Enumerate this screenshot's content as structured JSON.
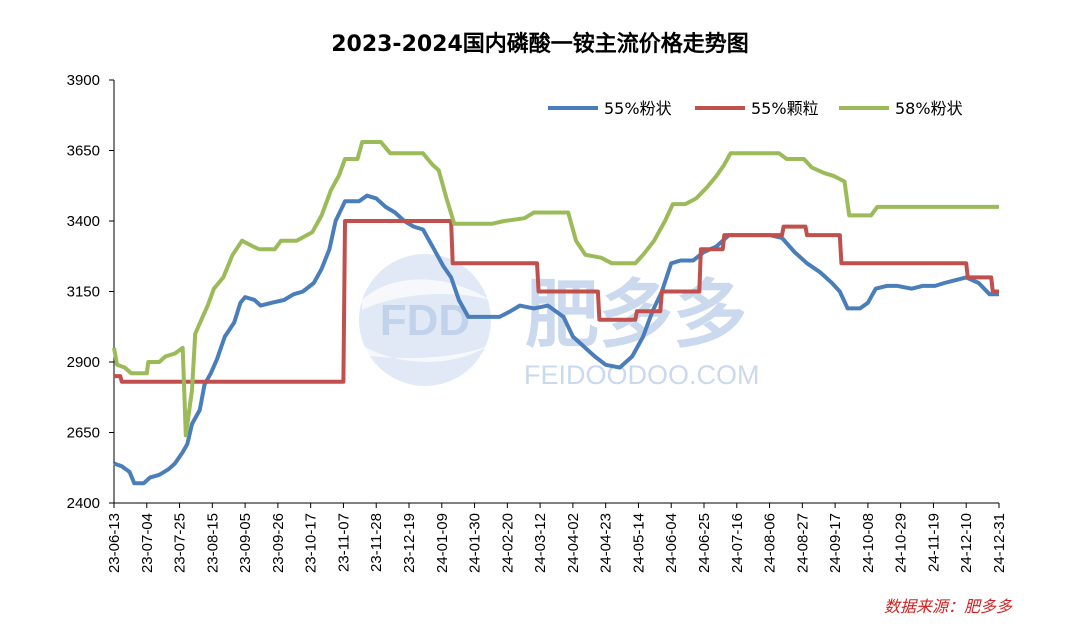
{
  "colors": {
    "series_blue": "#4a7ebb",
    "series_red": "#c0504d",
    "series_green": "#9bbb59",
    "source_red": "#d21f1f",
    "watermark": "#c8d8ee"
  },
  "watermark": {
    "logo": "FDD",
    "brand": "肥多多",
    "site": "FEIDOODOO.COM"
  },
  "source_note": "数据来源：肥多多",
  "chart_data": {
    "type": "line",
    "title": "2023-2024国内磷酸一铵主流价格走势图",
    "xlabel": "",
    "ylabel": "",
    "ylim": [
      2400,
      3900
    ],
    "yticks": [
      2400,
      2650,
      2900,
      3150,
      3400,
      3650,
      3900
    ],
    "xlim": [
      "2023-06-13",
      "2024-12-31"
    ],
    "xtick_labels": [
      "23-06-13",
      "23-07-04",
      "23-07-25",
      "23-08-15",
      "23-09-05",
      "23-09-26",
      "23-10-17",
      "23-11-07",
      "23-11-28",
      "23-12-19",
      "24-01-09",
      "24-01-30",
      "24-02-20",
      "24-03-12",
      "24-04-02",
      "24-04-23",
      "24-05-14",
      "24-06-04",
      "24-06-25",
      "24-07-16",
      "24-08-06",
      "24-08-27",
      "24-09-17",
      "24-10-08",
      "24-10-29",
      "24-11-19",
      "24-12-10",
      "24-12-31"
    ],
    "legend_position": "top-right",
    "grid": false,
    "series": [
      {
        "name": "55%粉状",
        "color": "#4a7ebb",
        "points": [
          [
            "2023-06-13",
            2540
          ],
          [
            "2023-06-18",
            2530
          ],
          [
            "2023-06-23",
            2510
          ],
          [
            "2023-06-26",
            2470
          ],
          [
            "2023-07-02",
            2470
          ],
          [
            "2023-07-06",
            2490
          ],
          [
            "2023-07-12",
            2500
          ],
          [
            "2023-07-18",
            2520
          ],
          [
            "2023-07-22",
            2540
          ],
          [
            "2023-07-27",
            2580
          ],
          [
            "2023-07-30",
            2610
          ],
          [
            "2023-08-02",
            2680
          ],
          [
            "2023-08-07",
            2730
          ],
          [
            "2023-08-10",
            2820
          ],
          [
            "2023-08-14",
            2860
          ],
          [
            "2023-08-18",
            2910
          ],
          [
            "2023-08-23",
            2990
          ],
          [
            "2023-08-29",
            3040
          ],
          [
            "2023-09-02",
            3110
          ],
          [
            "2023-09-05",
            3130
          ],
          [
            "2023-09-11",
            3120
          ],
          [
            "2023-09-15",
            3100
          ],
          [
            "2023-09-22",
            3110
          ],
          [
            "2023-09-30",
            3120
          ],
          [
            "2023-10-06",
            3140
          ],
          [
            "2023-10-12",
            3150
          ],
          [
            "2023-10-19",
            3180
          ],
          [
            "2023-10-24",
            3230
          ],
          [
            "2023-10-29",
            3300
          ],
          [
            "2023-11-02",
            3400
          ],
          [
            "2023-11-08",
            3470
          ],
          [
            "2023-11-17",
            3470
          ],
          [
            "2023-11-22",
            3490
          ],
          [
            "2023-11-28",
            3480
          ],
          [
            "2023-12-04",
            3450
          ],
          [
            "2023-12-10",
            3430
          ],
          [
            "2023-12-16",
            3400
          ],
          [
            "2023-12-22",
            3380
          ],
          [
            "2023-12-28",
            3370
          ],
          [
            "2024-01-04",
            3300
          ],
          [
            "2024-01-10",
            3240
          ],
          [
            "2024-01-15",
            3200
          ],
          [
            "2024-01-20",
            3120
          ],
          [
            "2024-01-26",
            3060
          ],
          [
            "2024-02-05",
            3060
          ],
          [
            "2024-02-15",
            3060
          ],
          [
            "2024-02-22",
            3080
          ],
          [
            "2024-02-28",
            3100
          ],
          [
            "2024-03-08",
            3090
          ],
          [
            "2024-03-17",
            3100
          ],
          [
            "2024-03-27",
            3060
          ],
          [
            "2024-04-02",
            2990
          ],
          [
            "2024-04-08",
            2960
          ],
          [
            "2024-04-16",
            2920
          ],
          [
            "2024-04-23",
            2890
          ],
          [
            "2024-05-02",
            2880
          ],
          [
            "2024-05-10",
            2920
          ],
          [
            "2024-05-17",
            2990
          ],
          [
            "2024-05-23",
            3080
          ],
          [
            "2024-05-29",
            3150
          ],
          [
            "2024-06-04",
            3250
          ],
          [
            "2024-06-10",
            3260
          ],
          [
            "2024-06-18",
            3260
          ],
          [
            "2024-06-25",
            3290
          ],
          [
            "2024-07-03",
            3310
          ],
          [
            "2024-07-11",
            3350
          ],
          [
            "2024-07-22",
            3350
          ],
          [
            "2024-08-06",
            3350
          ],
          [
            "2024-08-14",
            3340
          ],
          [
            "2024-08-22",
            3290
          ],
          [
            "2024-08-30",
            3250
          ],
          [
            "2024-09-07",
            3220
          ],
          [
            "2024-09-15",
            3180
          ],
          [
            "2024-09-20",
            3150
          ],
          [
            "2024-09-25",
            3090
          ],
          [
            "2024-10-03",
            3090
          ],
          [
            "2024-10-08",
            3110
          ],
          [
            "2024-10-13",
            3160
          ],
          [
            "2024-10-20",
            3170
          ],
          [
            "2024-10-27",
            3170
          ],
          [
            "2024-11-05",
            3160
          ],
          [
            "2024-11-12",
            3170
          ],
          [
            "2024-11-20",
            3170
          ],
          [
            "2024-11-26",
            3180
          ],
          [
            "2024-12-03",
            3190
          ],
          [
            "2024-12-10",
            3200
          ],
          [
            "2024-12-18",
            3180
          ],
          [
            "2024-12-25",
            3140
          ],
          [
            "2024-12-31",
            3140
          ]
        ]
      },
      {
        "name": "55%颗粒",
        "color": "#c0504d",
        "points": [
          [
            "2023-06-13",
            2850
          ],
          [
            "2023-06-17",
            2850
          ],
          [
            "2023-06-18",
            2830
          ],
          [
            "2023-11-07",
            2830
          ],
          [
            "2023-11-08",
            3400
          ],
          [
            "2024-01-15",
            3400
          ],
          [
            "2024-01-16",
            3250
          ],
          [
            "2024-03-10",
            3250
          ],
          [
            "2024-03-11",
            3150
          ],
          [
            "2024-04-18",
            3150
          ],
          [
            "2024-04-19",
            3050
          ],
          [
            "2024-05-12",
            3050
          ],
          [
            "2024-05-13",
            3080
          ],
          [
            "2024-05-28",
            3080
          ],
          [
            "2024-05-29",
            3150
          ],
          [
            "2024-06-22",
            3150
          ],
          [
            "2024-06-23",
            3300
          ],
          [
            "2024-07-07",
            3300
          ],
          [
            "2024-07-08",
            3350
          ],
          [
            "2024-08-14",
            3350
          ],
          [
            "2024-08-15",
            3380
          ],
          [
            "2024-08-29",
            3380
          ],
          [
            "2024-08-30",
            3350
          ],
          [
            "2024-09-20",
            3350
          ],
          [
            "2024-09-21",
            3250
          ],
          [
            "2024-12-10",
            3250
          ],
          [
            "2024-12-11",
            3200
          ],
          [
            "2024-12-26",
            3200
          ],
          [
            "2024-12-27",
            3150
          ],
          [
            "2024-12-31",
            3150
          ]
        ]
      },
      {
        "name": "58%粉状",
        "color": "#9bbb59",
        "points": [
          [
            "2023-06-13",
            2950
          ],
          [
            "2023-06-15",
            2890
          ],
          [
            "2023-06-20",
            2880
          ],
          [
            "2023-06-24",
            2860
          ],
          [
            "2023-07-04",
            2860
          ],
          [
            "2023-07-05",
            2900
          ],
          [
            "2023-07-12",
            2900
          ],
          [
            "2023-07-16",
            2920
          ],
          [
            "2023-07-22",
            2930
          ],
          [
            "2023-07-27",
            2950
          ],
          [
            "2023-07-29",
            2640
          ],
          [
            "2023-08-02",
            2800
          ],
          [
            "2023-08-04",
            3000
          ],
          [
            "2023-08-08",
            3050
          ],
          [
            "2023-08-12",
            3100
          ],
          [
            "2023-08-16",
            3160
          ],
          [
            "2023-08-22",
            3200
          ],
          [
            "2023-08-28",
            3280
          ],
          [
            "2023-09-03",
            3330
          ],
          [
            "2023-09-10",
            3310
          ],
          [
            "2023-09-14",
            3300
          ],
          [
            "2023-09-24",
            3300
          ],
          [
            "2023-09-28",
            3330
          ],
          [
            "2023-10-08",
            3330
          ],
          [
            "2023-10-18",
            3360
          ],
          [
            "2023-10-24",
            3420
          ],
          [
            "2023-10-30",
            3510
          ],
          [
            "2023-11-04",
            3560
          ],
          [
            "2023-11-08",
            3620
          ],
          [
            "2023-11-16",
            3620
          ],
          [
            "2023-11-19",
            3680
          ],
          [
            "2023-12-01",
            3680
          ],
          [
            "2023-12-07",
            3640
          ],
          [
            "2023-12-20",
            3640
          ],
          [
            "2023-12-28",
            3640
          ],
          [
            "2024-01-03",
            3600
          ],
          [
            "2024-01-07",
            3580
          ],
          [
            "2024-01-12",
            3480
          ],
          [
            "2024-01-17",
            3390
          ],
          [
            "2024-02-10",
            3390
          ],
          [
            "2024-02-18",
            3400
          ],
          [
            "2024-03-02",
            3410
          ],
          [
            "2024-03-08",
            3430
          ],
          [
            "2024-03-30",
            3430
          ],
          [
            "2024-04-04",
            3330
          ],
          [
            "2024-04-10",
            3280
          ],
          [
            "2024-04-20",
            3270
          ],
          [
            "2024-04-27",
            3250
          ],
          [
            "2024-05-12",
            3250
          ],
          [
            "2024-05-17",
            3280
          ],
          [
            "2024-05-24",
            3330
          ],
          [
            "2024-05-31",
            3400
          ],
          [
            "2024-06-05",
            3460
          ],
          [
            "2024-06-13",
            3460
          ],
          [
            "2024-06-20",
            3480
          ],
          [
            "2024-06-27",
            3520
          ],
          [
            "2024-07-03",
            3560
          ],
          [
            "2024-07-08",
            3600
          ],
          [
            "2024-07-12",
            3640
          ],
          [
            "2024-08-04",
            3640
          ],
          [
            "2024-08-12",
            3640
          ],
          [
            "2024-08-17",
            3620
          ],
          [
            "2024-08-28",
            3620
          ],
          [
            "2024-09-02",
            3590
          ],
          [
            "2024-09-10",
            3570
          ],
          [
            "2024-09-16",
            3560
          ],
          [
            "2024-09-23",
            3540
          ],
          [
            "2024-09-26",
            3420
          ],
          [
            "2024-10-10",
            3420
          ],
          [
            "2024-10-14",
            3450
          ],
          [
            "2024-12-31",
            3450
          ]
        ]
      }
    ]
  }
}
